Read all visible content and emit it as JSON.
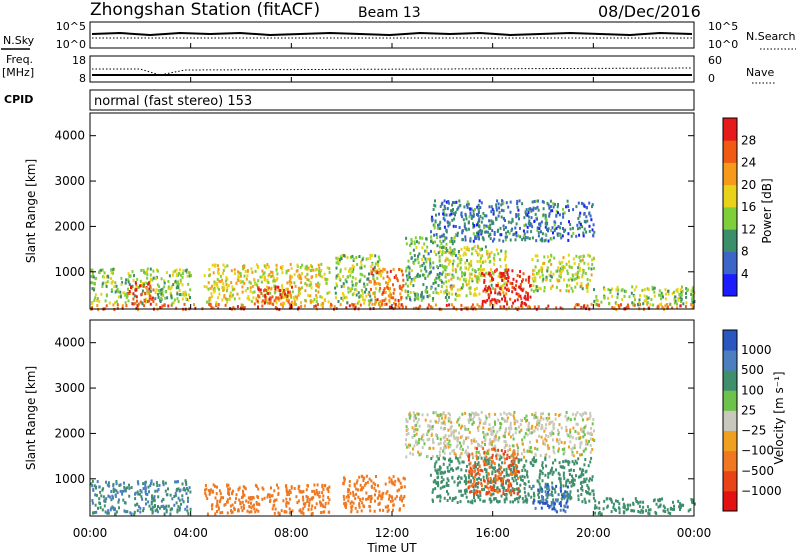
{
  "header": {
    "station_title": "Zhongshan Station (fitACF)",
    "beam_label": "Beam 13",
    "date_label": "08/Dec/2016"
  },
  "noise_panel": {
    "left_label": "N.Sky",
    "left_ticks": [
      "10^5",
      "10^0"
    ],
    "right_ticks": [
      "10^5",
      "10^0"
    ],
    "right_label": "N.Search"
  },
  "freq_panel": {
    "left_label_line1": "Freq.",
    "left_label_line2": "[MHz]",
    "left_ticks": [
      "18",
      "8"
    ],
    "right_ticks": [
      "60",
      "0"
    ],
    "right_label": "Nave"
  },
  "cpid_panel": {
    "label": "CPID",
    "mode_text": "normal (fast stereo) 153"
  },
  "power_panel": {
    "ylabel": "Slant Range [km]",
    "ytick_labels": [
      "1000",
      "2000",
      "3000",
      "4000"
    ],
    "colorbar_label": "Power [dB]",
    "colorbar_tick_labels": [
      "4",
      "8",
      "12",
      "16",
      "20",
      "24",
      "28"
    ],
    "colorbar_colors": [
      "#1c1cff",
      "#3b66c8",
      "#3a8f6a",
      "#7fcf3a",
      "#e8d21a",
      "#f59a1a",
      "#f05a12",
      "#e6191b"
    ]
  },
  "velocity_panel": {
    "ylabel": "Slant Range [km]",
    "ytick_labels": [
      "1000",
      "2000",
      "3000",
      "4000"
    ],
    "colorbar_label": "Velocity [m s⁻¹]",
    "colorbar_tick_labels": [
      "1000",
      "500",
      "100",
      "25",
      "−25",
      "−100",
      "−500",
      "−1000"
    ],
    "colorbar_colors": [
      "#2a56c0",
      "#4b7fc0",
      "#3f8f6c",
      "#6cc24a",
      "#c8c8bc",
      "#f0a020",
      "#f07820",
      "#e84418",
      "#e21212"
    ]
  },
  "xaxis": {
    "tick_labels": [
      "00:00",
      "04:00",
      "08:00",
      "12:00",
      "16:00",
      "20:00",
      "00:00"
    ],
    "label": "Time UT"
  },
  "chart_data": {
    "type": "heatmap",
    "x_range_hours_ut": [
      0,
      24
    ],
    "y_range_km": [
      180,
      4500
    ],
    "note_visible": "Beam 13",
    "power_clusters": [
      {
        "t": [
          0.0,
          24.0
        ],
        "r": [
          200,
          320
        ],
        "level": 24
      },
      {
        "t": [
          0.0,
          4.0
        ],
        "r": [
          320,
          1100
        ],
        "level": 12
      },
      {
        "t": [
          1.5,
          2.5
        ],
        "r": [
          300,
          800
        ],
        "level": 26
      },
      {
        "t": [
          4.5,
          9.5
        ],
        "r": [
          300,
          1200
        ],
        "level": 16
      },
      {
        "t": [
          6.5,
          8.0
        ],
        "r": [
          300,
          700
        ],
        "level": 26
      },
      {
        "t": [
          9.7,
          11.5
        ],
        "r": [
          300,
          1400
        ],
        "level": 12
      },
      {
        "t": [
          11.0,
          12.5
        ],
        "r": [
          300,
          1100
        ],
        "level": 22
      },
      {
        "t": [
          12.5,
          14.5
        ],
        "r": [
          400,
          1800
        ],
        "level": 10
      },
      {
        "t": [
          14.0,
          16.5
        ],
        "r": [
          500,
          1600
        ],
        "level": 14
      },
      {
        "t": [
          15.5,
          17.5
        ],
        "r": [
          300,
          1100
        ],
        "level": 28
      },
      {
        "t": [
          13.5,
          20.0
        ],
        "r": [
          1700,
          2600
        ],
        "level": 6
      },
      {
        "t": [
          17.5,
          20.0
        ],
        "r": [
          600,
          1400
        ],
        "level": 14
      },
      {
        "t": [
          20.0,
          24.0
        ],
        "r": [
          300,
          700
        ],
        "level": 12
      }
    ],
    "velocity_clusters": [
      {
        "t": [
          0.0,
          4.0
        ],
        "r": [
          250,
          1000
        ],
        "v": 300
      },
      {
        "t": [
          4.5,
          9.5
        ],
        "r": [
          250,
          900
        ],
        "v": -150
      },
      {
        "t": [
          10.0,
          12.5
        ],
        "r": [
          300,
          1100
        ],
        "v": -200
      },
      {
        "t": [
          12.5,
          20.0
        ],
        "r": [
          1500,
          2500
        ],
        "v": 0
      },
      {
        "t": [
          13.5,
          20.0
        ],
        "r": [
          500,
          1500
        ],
        "v": 150
      },
      {
        "t": [
          15.0,
          17.0
        ],
        "r": [
          700,
          1700
        ],
        "v": -300
      },
      {
        "t": [
          17.5,
          19.0
        ],
        "r": [
          300,
          900
        ],
        "v": 700
      },
      {
        "t": [
          20.0,
          24.0
        ],
        "r": [
          250,
          600
        ],
        "v": 150
      }
    ]
  }
}
